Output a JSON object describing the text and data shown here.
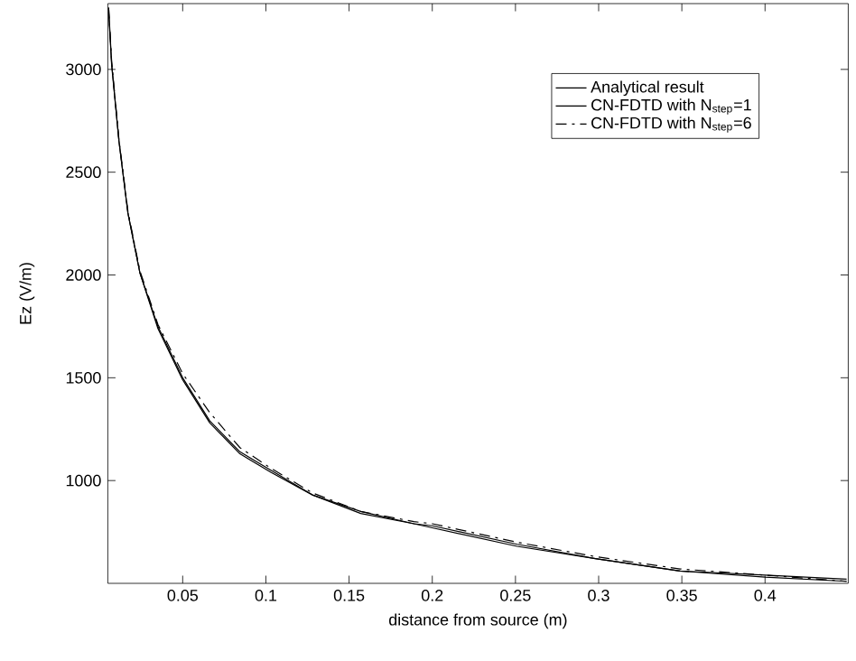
{
  "chart_data": {
    "type": "line",
    "xlabel": "distance from source (m)",
    "ylabel": "Ez (V/m)",
    "xlim": [
      0.005,
      0.45
    ],
    "ylim": [
      500,
      3320
    ],
    "xticks": [
      0.05,
      0.1,
      0.15,
      0.2,
      0.25,
      0.3,
      0.35,
      0.4
    ],
    "yticks": [
      1000,
      1500,
      2000,
      2500,
      3000
    ],
    "x": [
      0.0055,
      0.0073,
      0.0117,
      0.0171,
      0.0243,
      0.0351,
      0.05,
      0.0663,
      0.0844,
      0.103,
      0.128,
      0.157,
      0.189,
      0.2,
      0.251,
      0.298,
      0.349,
      0.4,
      0.449
    ],
    "legend": "top right",
    "grid": false,
    "series": [
      {
        "name": "Analytical result",
        "color": "#000000",
        "line_style": "solid",
        "values": [
          3300,
          3030,
          2650,
          2300,
          2010,
          1740,
          1490,
          1280,
          1130,
          1040,
          930,
          840,
          790,
          770,
          680,
          620,
          560,
          530,
          510
        ]
      },
      {
        "name": "CN-FDTD with N$_{step}$=1",
        "color": "#000000",
        "line_style": "solid",
        "values": [
          3280,
          3020,
          2650,
          2300,
          2010,
          1750,
          1500,
          1290,
          1140,
          1050,
          930,
          850,
          790,
          780,
          690,
          620,
          560,
          540,
          520
        ]
      },
      {
        "name": "CN-FDTD with N$_{step}$=6",
        "color": "#000000",
        "line_style": "dashed",
        "values": [
          3300,
          3040,
          2660,
          2310,
          2020,
          1760,
          1520,
          1330,
          1160,
          1060,
          940,
          850,
          800,
          790,
          700,
          630,
          570,
          540,
          510
        ]
      }
    ]
  }
}
